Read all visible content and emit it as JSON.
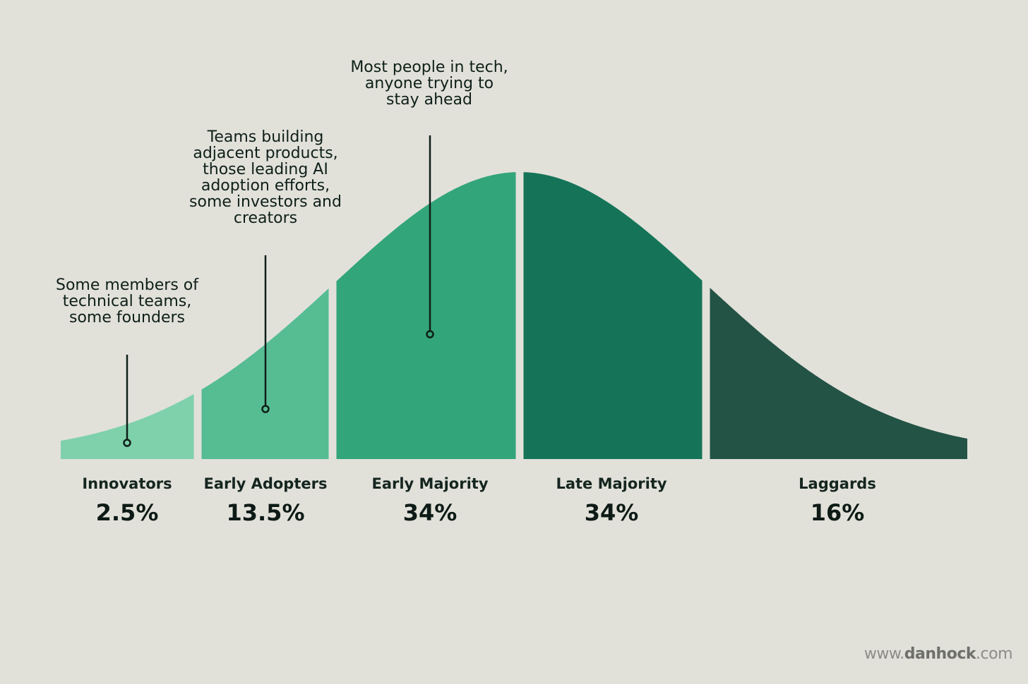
{
  "chart_data": {
    "type": "area",
    "distribution": "normal",
    "segments": [
      {
        "name": "Innovators",
        "percent": "2.5%",
        "value": 2.5,
        "color": "#7ed1ab",
        "annotation": "Some members of technical teams, some founders"
      },
      {
        "name": "Early Adopters",
        "percent": "13.5%",
        "value": 13.5,
        "color": "#56bc92",
        "annotation": "Teams building adjacent products, those leading AI adoption efforts, some investors and creators"
      },
      {
        "name": "Early Majority",
        "percent": "34%",
        "value": 34,
        "color": "#33a57a",
        "annotation": "Most people in tech, anyone trying to stay ahead"
      },
      {
        "name": "Late Majority",
        "percent": "34%",
        "value": 34,
        "color": "#157458",
        "annotation": ""
      },
      {
        "name": "Laggards",
        "percent": "16%",
        "value": 16,
        "color": "#235345",
        "annotation": ""
      }
    ]
  },
  "watermark": {
    "prefix": "www.",
    "brand": "danhock",
    "suffix": ".com"
  }
}
